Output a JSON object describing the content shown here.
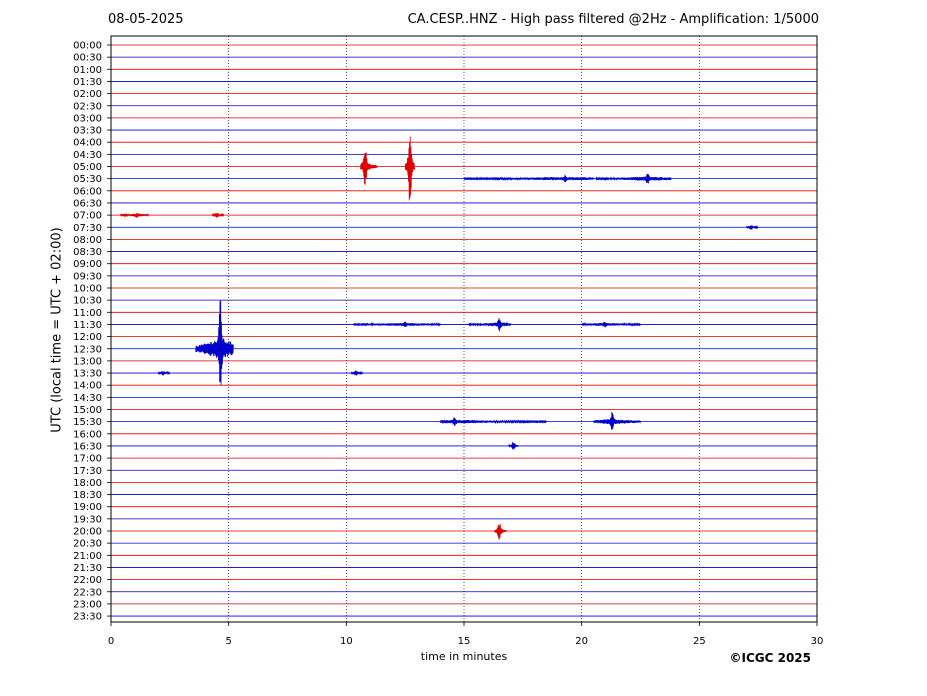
{
  "header": {
    "date": "08-05-2025",
    "title": "CA.CESP..HNZ - High pass filtered @2Hz - Amplification: 1/5000"
  },
  "footer": {
    "copyright": "©ICGC 2025"
  },
  "chart_data": {
    "type": "line",
    "title": "CA.CESP..HNZ - High pass filtered @2Hz - Amplification: 1/5000",
    "xlabel": "time in minutes",
    "ylabel": "UTC (local time = UTC + 02:00)",
    "xlim": [
      0,
      30
    ],
    "x_ticks": [
      0,
      5,
      10,
      15,
      20,
      25,
      30
    ],
    "x_gridlines": [
      5,
      10,
      15,
      20,
      25
    ],
    "grid": "vertical dotted",
    "trace_colors": [
      "#e00000",
      "#0000cc"
    ],
    "rows": [
      "00:00",
      "00:30",
      "01:00",
      "01:30",
      "02:00",
      "02:30",
      "03:00",
      "03:30",
      "04:00",
      "04:30",
      "05:00",
      "05:30",
      "06:00",
      "06:30",
      "07:00",
      "07:30",
      "08:00",
      "08:30",
      "09:00",
      "09:30",
      "10:00",
      "10:30",
      "11:00",
      "11:30",
      "12:00",
      "12:30",
      "13:00",
      "13:30",
      "14:00",
      "14:30",
      "15:00",
      "15:30",
      "16:00",
      "16:30",
      "17:00",
      "17:30",
      "18:00",
      "18:30",
      "19:00",
      "19:30",
      "20:00",
      "20:30",
      "21:00",
      "21:30",
      "22:00",
      "22:30",
      "23:00",
      "23:30"
    ],
    "events": [
      {
        "row": "05:00",
        "start": 10.6,
        "end": 11.3,
        "peak": 10.8,
        "amplitude": 22
      },
      {
        "row": "05:00",
        "start": 12.5,
        "end": 12.9,
        "peak": 12.7,
        "amplitude": 48
      },
      {
        "row": "05:30",
        "start": 15.0,
        "end": 20.5,
        "peak": 19.3,
        "amplitude": 3
      },
      {
        "row": "05:30",
        "start": 20.6,
        "end": 23.8,
        "peak": 22.8,
        "amplitude": 5
      },
      {
        "row": "07:00",
        "start": 0.4,
        "end": 1.6,
        "peak": 1.1,
        "amplitude": 2
      },
      {
        "row": "07:00",
        "start": 4.3,
        "end": 4.8,
        "peak": 4.5,
        "amplitude": 2
      },
      {
        "row": "07:30",
        "start": 27.0,
        "end": 27.5,
        "peak": 27.2,
        "amplitude": 1.5
      },
      {
        "row": "11:30",
        "start": 10.3,
        "end": 14.0,
        "peak": 12.5,
        "amplitude": 2
      },
      {
        "row": "11:30",
        "start": 15.2,
        "end": 17.0,
        "peak": 16.5,
        "amplitude": 6
      },
      {
        "row": "11:30",
        "start": 20.0,
        "end": 22.5,
        "peak": 21.0,
        "amplitude": 2
      },
      {
        "row": "12:30",
        "start": 3.6,
        "end": 5.2,
        "peak": 4.65,
        "amplitude": 60
      },
      {
        "row": "13:30",
        "start": 2.0,
        "end": 2.5,
        "peak": 2.2,
        "amplitude": 1.5
      },
      {
        "row": "13:30",
        "start": 10.2,
        "end": 10.7,
        "peak": 10.4,
        "amplitude": 1.5
      },
      {
        "row": "15:30",
        "start": 14.0,
        "end": 18.5,
        "peak": 14.6,
        "amplitude": 4
      },
      {
        "row": "15:30",
        "start": 20.5,
        "end": 22.5,
        "peak": 21.3,
        "amplitude": 10
      },
      {
        "row": "16:30",
        "start": 16.9,
        "end": 17.3,
        "peak": 17.1,
        "amplitude": 4
      },
      {
        "row": "20:00",
        "start": 16.3,
        "end": 16.8,
        "peak": 16.5,
        "amplitude": 9
      }
    ]
  }
}
